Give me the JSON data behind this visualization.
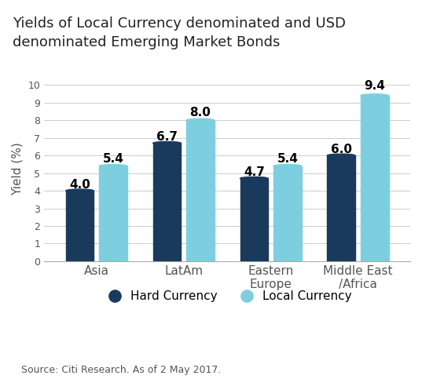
{
  "title": "Yields of Local Currency denominated and USD\ndenominated Emerging Market Bonds",
  "categories": [
    "Asia",
    "LatAm",
    "Eastern\nEurope",
    "Middle East\n/Africa"
  ],
  "hard_currency": [
    4.0,
    6.7,
    4.7,
    6.0
  ],
  "local_currency": [
    5.4,
    8.0,
    5.4,
    9.4
  ],
  "hard_color": "#1a3a5c",
  "local_color": "#7dcfdf",
  "ylabel": "Yield (%)",
  "ylim": [
    0,
    10.5
  ],
  "yticks": [
    0,
    1,
    2,
    3,
    4,
    5,
    6,
    7,
    8,
    9,
    10
  ],
  "bar_width": 0.32,
  "title_bg_color": "#ddeef6",
  "background_color": "#ffffff",
  "source_text": "Source: Citi Research. As of 2 May 2017.",
  "label_fontsize": 11,
  "title_fontsize": 13,
  "legend_fontsize": 11,
  "source_fontsize": 9,
  "axis_label_fontsize": 11
}
